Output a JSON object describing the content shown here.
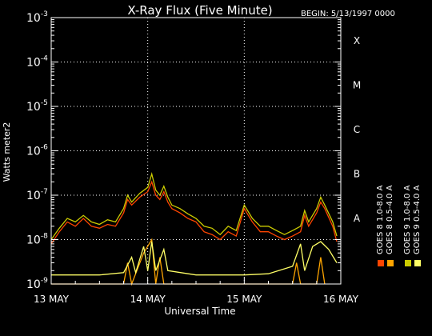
{
  "title": "X-Ray Flux (Five Minute)",
  "begin_label": "BEGIN: 5/13/1997 0000",
  "colors": {
    "background": "#000000",
    "axes": "#ffffff",
    "goes8_long": "#ff4500",
    "goes8_short": "#ffa500",
    "goes9_short": "#ffff66",
    "goes9_long": "#cccc00"
  },
  "chart_data": {
    "type": "line",
    "title": "X-Ray Flux (Five Minute)",
    "xlabel": "Universal Time",
    "ylabel": "Watts meter2",
    "y_scale": "log",
    "ylim": [
      1e-09,
      0.001
    ],
    "xlim": [
      "1997-05-13 00:00",
      "1997-05-16 00:00"
    ],
    "x_tick_labels": [
      "13 MAY",
      "14 MAY",
      "15 MAY",
      "16 MAY"
    ],
    "y_tick_labels": [
      {
        "base": "10",
        "exp": "-9"
      },
      {
        "base": "10",
        "exp": "-8"
      },
      {
        "base": "10",
        "exp": "-7"
      },
      {
        "base": "10",
        "exp": "-6"
      },
      {
        "base": "10",
        "exp": "-5"
      },
      {
        "base": "10",
        "exp": "-4"
      },
      {
        "base": "10",
        "exp": "-3"
      }
    ],
    "flare_classes": [
      "A",
      "B",
      "C",
      "M",
      "X"
    ],
    "grid": true,
    "legend_position": "right, vertical",
    "series": [
      {
        "name": "GOES 8 1.0-8.0 A",
        "color": "#ff4500",
        "points": [
          [
            "1997-05-13 00:00",
            8e-09
          ],
          [
            "1997-05-13 02:00",
            1.5e-08
          ],
          [
            "1997-05-13 04:00",
            2.5e-08
          ],
          [
            "1997-05-13 06:00",
            2e-08
          ],
          [
            "1997-05-13 08:00",
            3e-08
          ],
          [
            "1997-05-13 10:00",
            2e-08
          ],
          [
            "1997-05-13 12:00",
            1.8e-08
          ],
          [
            "1997-05-13 14:00",
            2.2e-08
          ],
          [
            "1997-05-13 16:00",
            2e-08
          ],
          [
            "1997-05-13 18:00",
            4e-08
          ],
          [
            "1997-05-13 19:00",
            8e-08
          ],
          [
            "1997-05-13 20:00",
            6e-08
          ],
          [
            "1997-05-13 22:00",
            9e-08
          ],
          [
            "1997-05-14 00:00",
            1.2e-07
          ],
          [
            "1997-05-14 01:00",
            2e-07
          ],
          [
            "1997-05-14 02:00",
            1e-07
          ],
          [
            "1997-05-14 03:00",
            8e-08
          ],
          [
            "1997-05-14 04:00",
            1.2e-07
          ],
          [
            "1997-05-14 05:00",
            7e-08
          ],
          [
            "1997-05-14 06:00",
            5e-08
          ],
          [
            "1997-05-14 08:00",
            4e-08
          ],
          [
            "1997-05-14 10:00",
            3e-08
          ],
          [
            "1997-05-14 12:00",
            2.5e-08
          ],
          [
            "1997-05-14 14:00",
            1.5e-08
          ],
          [
            "1997-05-14 16:00",
            1.3e-08
          ],
          [
            "1997-05-14 18:00",
            1e-08
          ],
          [
            "1997-05-14 20:00",
            1.5e-08
          ],
          [
            "1997-05-14 22:00",
            1.2e-08
          ],
          [
            "1997-05-15 00:00",
            5e-08
          ],
          [
            "1997-05-15 02:00",
            2.5e-08
          ],
          [
            "1997-05-15 04:00",
            1.5e-08
          ],
          [
            "1997-05-15 06:00",
            1.5e-08
          ],
          [
            "1997-05-15 08:00",
            1.2e-08
          ],
          [
            "1997-05-15 10:00",
            1e-08
          ],
          [
            "1997-05-15 12:00",
            1.2e-08
          ],
          [
            "1997-05-15 14:00",
            1.5e-08
          ],
          [
            "1997-05-15 15:00",
            3.5e-08
          ],
          [
            "1997-05-15 16:00",
            2e-08
          ],
          [
            "1997-05-15 18:00",
            4e-08
          ],
          [
            "1997-05-15 19:00",
            7e-08
          ],
          [
            "1997-05-15 20:00",
            5e-08
          ],
          [
            "1997-05-15 22:00",
            2e-08
          ],
          [
            "1997-05-15 23:00",
            9e-09
          ]
        ]
      },
      {
        "name": "GOES 8 0.5-4.0 A",
        "color": "#ffa500",
        "points": [
          [
            "1997-05-13 00:00",
            1e-09
          ],
          [
            "1997-05-13 18:00",
            1e-09
          ],
          [
            "1997-05-13 19:00",
            3e-09
          ],
          [
            "1997-05-13 20:00",
            1e-09
          ],
          [
            "1997-05-13 23:00",
            5e-09
          ],
          [
            "1997-05-14 01:00",
            1e-08
          ],
          [
            "1997-05-14 02:00",
            1e-09
          ],
          [
            "1997-05-14 03:00",
            4e-09
          ],
          [
            "1997-05-14 04:00",
            1e-09
          ],
          [
            "1997-05-15 12:00",
            1e-09
          ],
          [
            "1997-05-15 13:00",
            3e-09
          ],
          [
            "1997-05-15 14:00",
            1e-09
          ],
          [
            "1997-05-15 18:00",
            1e-09
          ],
          [
            "1997-05-15 19:00",
            4e-09
          ],
          [
            "1997-05-15 20:00",
            1e-09
          ]
        ]
      },
      {
        "name": "GOES 9 0.5-4.0 A",
        "color": "#ffff66",
        "points": [
          [
            "1997-05-13 00:00",
            1.6e-09
          ],
          [
            "1997-05-13 06:00",
            1.6e-09
          ],
          [
            "1997-05-13 12:00",
            1.6e-09
          ],
          [
            "1997-05-13 18:00",
            1.8e-09
          ],
          [
            "1997-05-13 20:00",
            4e-09
          ],
          [
            "1997-05-13 21:00",
            1.8e-09
          ],
          [
            "1997-05-13 23:00",
            7e-09
          ],
          [
            "1997-05-14 00:00",
            2e-09
          ],
          [
            "1997-05-14 01:00",
            9e-09
          ],
          [
            "1997-05-14 02:00",
            2e-09
          ],
          [
            "1997-05-14 04:00",
            6e-09
          ],
          [
            "1997-05-14 05:00",
            2e-09
          ],
          [
            "1997-05-14 12:00",
            1.6e-09
          ],
          [
            "1997-05-15 00:00",
            1.6e-09
          ],
          [
            "1997-05-15 06:00",
            1.7e-09
          ],
          [
            "1997-05-15 12:00",
            2.5e-09
          ],
          [
            "1997-05-15 14:00",
            8e-09
          ],
          [
            "1997-05-15 15:00",
            2e-09
          ],
          [
            "1997-05-15 17:00",
            7e-09
          ],
          [
            "1997-05-15 19:00",
            9e-09
          ],
          [
            "1997-05-15 21:00",
            6e-09
          ],
          [
            "1997-05-15 23:00",
            3e-09
          ]
        ]
      },
      {
        "name": "GOES 9 1.0-8.0 A",
        "color": "#cccc00",
        "points": [
          [
            "1997-05-13 00:00",
            1e-08
          ],
          [
            "1997-05-13 02:00",
            1.8e-08
          ],
          [
            "1997-05-13 04:00",
            3e-08
          ],
          [
            "1997-05-13 06:00",
            2.5e-08
          ],
          [
            "1997-05-13 08:00",
            3.5e-08
          ],
          [
            "1997-05-13 10:00",
            2.5e-08
          ],
          [
            "1997-05-13 12:00",
            2.2e-08
          ],
          [
            "1997-05-13 14:00",
            2.8e-08
          ],
          [
            "1997-05-13 16:00",
            2.5e-08
          ],
          [
            "1997-05-13 18:00",
            5e-08
          ],
          [
            "1997-05-13 19:00",
            1e-07
          ],
          [
            "1997-05-13 20:00",
            7e-08
          ],
          [
            "1997-05-13 22:00",
            1.1e-07
          ],
          [
            "1997-05-14 00:00",
            1.5e-07
          ],
          [
            "1997-05-14 01:00",
            3e-07
          ],
          [
            "1997-05-14 02:00",
            1.3e-07
          ],
          [
            "1997-05-14 03:00",
            1e-07
          ],
          [
            "1997-05-14 04:00",
            1.6e-07
          ],
          [
            "1997-05-14 05:00",
            9e-08
          ],
          [
            "1997-05-14 06:00",
            6e-08
          ],
          [
            "1997-05-14 08:00",
            5e-08
          ],
          [
            "1997-05-14 10:00",
            3.8e-08
          ],
          [
            "1997-05-14 12:00",
            3e-08
          ],
          [
            "1997-05-14 14:00",
            2e-08
          ],
          [
            "1997-05-14 16:00",
            1.8e-08
          ],
          [
            "1997-05-14 18:00",
            1.3e-08
          ],
          [
            "1997-05-14 20:00",
            2e-08
          ],
          [
            "1997-05-14 22:00",
            1.6e-08
          ],
          [
            "1997-05-15 00:00",
            6e-08
          ],
          [
            "1997-05-15 02:00",
            3e-08
          ],
          [
            "1997-05-15 04:00",
            2e-08
          ],
          [
            "1997-05-15 06:00",
            2e-08
          ],
          [
            "1997-05-15 08:00",
            1.6e-08
          ],
          [
            "1997-05-15 10:00",
            1.3e-08
          ],
          [
            "1997-05-15 12:00",
            1.6e-08
          ],
          [
            "1997-05-15 14:00",
            2e-08
          ],
          [
            "1997-05-15 15:00",
            4.5e-08
          ],
          [
            "1997-05-15 16:00",
            2.5e-08
          ],
          [
            "1997-05-15 18:00",
            5e-08
          ],
          [
            "1997-05-15 19:00",
            9e-08
          ],
          [
            "1997-05-15 20:00",
            6e-08
          ],
          [
            "1997-05-15 22:00",
            2.5e-08
          ],
          [
            "1997-05-15 23:00",
            1.2e-08
          ]
        ]
      }
    ]
  }
}
